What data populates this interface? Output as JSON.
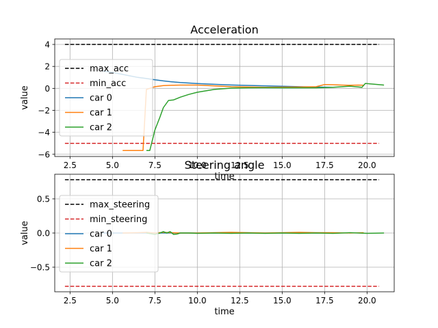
{
  "chart_data": [
    {
      "type": "line",
      "title": "Acceleration",
      "xlabel": "time",
      "ylabel": "value",
      "xlim": [
        1.6,
        21.6
      ],
      "ylim": [
        -6.2,
        4.5
      ],
      "xticks": [
        "2.5",
        "5.0",
        "7.5",
        "10.0",
        "12.5",
        "15.0",
        "17.5",
        "20.0"
      ],
      "yticks": [
        "4",
        "2",
        "0",
        "−2",
        "−4",
        "−6"
      ],
      "xtick_values": [
        2.5,
        5.0,
        7.5,
        10.0,
        12.5,
        15.0,
        17.5,
        20.0
      ],
      "ytick_values": [
        4,
        2,
        0,
        -2,
        -4,
        -6
      ],
      "grid": true,
      "legend_position": "center-left",
      "series": [
        {
          "name": "max_acc",
          "color": "#000000",
          "dash": true,
          "x": [
            2.2,
            20.7
          ],
          "y": [
            4.0,
            4.0
          ]
        },
        {
          "name": "min_acc",
          "color": "#d62728",
          "dash": true,
          "x": [
            2.2,
            20.7
          ],
          "y": [
            -5.0,
            -5.0
          ]
        },
        {
          "name": "car 0",
          "color": "#1f77b4",
          "dash": false,
          "x": [
            4.4,
            5.0,
            5.5,
            6.0,
            6.5,
            7.0,
            7.5,
            8.0,
            8.5,
            9.0,
            10.0,
            11.0,
            12.0,
            13.0,
            14.0,
            15.0,
            16.0,
            17.0,
            18.0
          ],
          "y": [
            1.6,
            1.45,
            1.3,
            1.15,
            1.0,
            0.9,
            0.78,
            0.68,
            0.6,
            0.53,
            0.44,
            0.37,
            0.31,
            0.27,
            0.23,
            0.19,
            0.15,
            0.12,
            0.1
          ]
        },
        {
          "name": "car 1",
          "color": "#ff7f0e",
          "dash": false,
          "x": [
            5.6,
            6.8,
            7.0,
            7.5,
            8.0,
            8.5,
            9.0,
            10.0,
            12.0,
            14.0,
            16.0,
            17.0,
            17.5,
            18.0,
            18.5,
            19.0,
            19.5,
            19.8
          ],
          "y": [
            -5.65,
            -5.65,
            -0.1,
            0.15,
            0.25,
            0.28,
            0.3,
            0.3,
            0.15,
            0.1,
            0.12,
            0.15,
            0.35,
            0.33,
            0.3,
            0.28,
            0.3,
            0.28
          ]
        },
        {
          "name": "car 2",
          "color": "#2ca02c",
          "dash": false,
          "x": [
            7.0,
            7.2,
            7.5,
            7.8,
            8.0,
            8.3,
            8.6,
            9.0,
            9.5,
            10.0,
            11.0,
            12.0,
            13.0,
            14.0,
            15.0,
            16.0,
            17.0,
            18.0,
            19.0,
            19.7,
            19.9,
            21.0
          ],
          "y": [
            -5.65,
            -5.65,
            -3.8,
            -2.6,
            -1.75,
            -1.1,
            -1.05,
            -0.8,
            -0.55,
            -0.35,
            -0.1,
            0.02,
            0.05,
            0.06,
            0.05,
            0.05,
            0.05,
            0.1,
            0.2,
            0.1,
            0.45,
            0.3
          ]
        }
      ]
    },
    {
      "type": "line",
      "title": "Steering angle",
      "xlabel": "time",
      "ylabel": "value",
      "xlim": [
        1.6,
        21.6
      ],
      "ylim": [
        -0.86,
        0.86
      ],
      "xticks": [
        "2.5",
        "5.0",
        "7.5",
        "10.0",
        "12.5",
        "15.0",
        "17.5",
        "20.0"
      ],
      "yticks": [
        "0.5",
        "0.0",
        "−0.5"
      ],
      "xtick_values": [
        2.5,
        5.0,
        7.5,
        10.0,
        12.5,
        15.0,
        17.5,
        20.0
      ],
      "ytick_values": [
        0.5,
        0.0,
        -0.5
      ],
      "grid": true,
      "legend_position": "center-left",
      "series": [
        {
          "name": "max_steering",
          "color": "#000000",
          "dash": true,
          "x": [
            2.2,
            20.7
          ],
          "y": [
            0.78,
            0.78
          ]
        },
        {
          "name": "min_steering",
          "color": "#d62728",
          "dash": true,
          "x": [
            2.2,
            20.7
          ],
          "y": [
            -0.78,
            -0.78
          ]
        },
        {
          "name": "car 0",
          "color": "#1f77b4",
          "dash": false,
          "x": [
            4.4,
            6.0,
            8.0,
            10.0,
            12.0,
            14.0,
            16.0,
            18.0
          ],
          "y": [
            0.0,
            0.0,
            0.0,
            0.0,
            0.0,
            0.0,
            0.0,
            0.0
          ]
        },
        {
          "name": "car 1",
          "color": "#ff7f0e",
          "dash": false,
          "x": [
            5.6,
            6.5,
            7.0,
            7.5,
            8.0,
            8.5,
            9.0,
            10.0,
            11.0,
            12.0,
            13.0,
            14.0,
            15.0,
            16.0,
            17.0,
            18.0,
            19.0,
            19.8
          ],
          "y": [
            0.0,
            0.005,
            0.01,
            0.0,
            0.01,
            0.005,
            0.0,
            0.0,
            0.005,
            0.01,
            0.005,
            0.0,
            0.005,
            0.01,
            0.005,
            0.005,
            0.0,
            0.005
          ]
        },
        {
          "name": "car 2",
          "color": "#2ca02c",
          "dash": false,
          "x": [
            7.0,
            7.5,
            7.8,
            8.0,
            8.2,
            8.4,
            8.6,
            8.8,
            9.0,
            9.5,
            10.0,
            11.0,
            12.0,
            13.0,
            14.0,
            15.0,
            16.0,
            17.0,
            18.0,
            19.0,
            20.0,
            21.0
          ],
          "y": [
            0.0,
            -0.02,
            0.0,
            0.02,
            0.0,
            0.02,
            -0.02,
            -0.015,
            0.0,
            0.0,
            -0.005,
            0.0,
            -0.005,
            0.0,
            -0.005,
            0.0,
            -0.005,
            0.0,
            -0.005,
            0.005,
            -0.005,
            0.0
          ]
        }
      ]
    }
  ]
}
